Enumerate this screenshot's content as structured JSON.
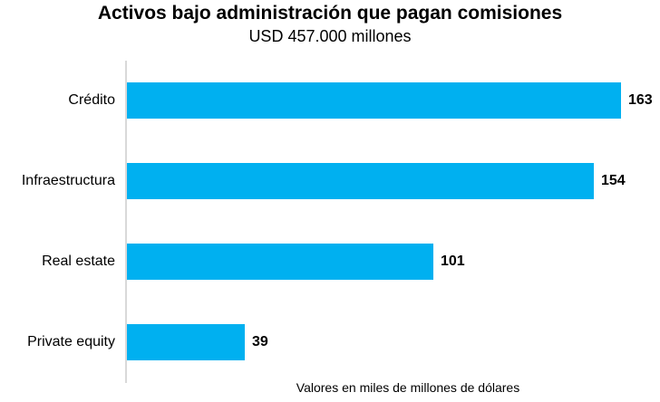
{
  "chart_data": {
    "type": "bar",
    "orientation": "horizontal",
    "title": "Activos bajo administración que pagan comisiones",
    "subtitle": "USD 457.000 millones",
    "footnote": "Valores en miles de millones de dólares",
    "categories": [
      "Crédito",
      "Infraestructura",
      "Real estate",
      "Private equity"
    ],
    "values": [
      163,
      154,
      101,
      39
    ],
    "value_labels": [
      "163",
      "154",
      "101",
      "39"
    ],
    "total_value_usd_millones": "457.000",
    "bar_color": "#00B0F0",
    "axis_line_color": "#D9D9D9",
    "text_color": "#000000",
    "background_color": "#FFFFFF",
    "grid": false,
    "legend": false,
    "data_labels_position": "outside-end"
  }
}
